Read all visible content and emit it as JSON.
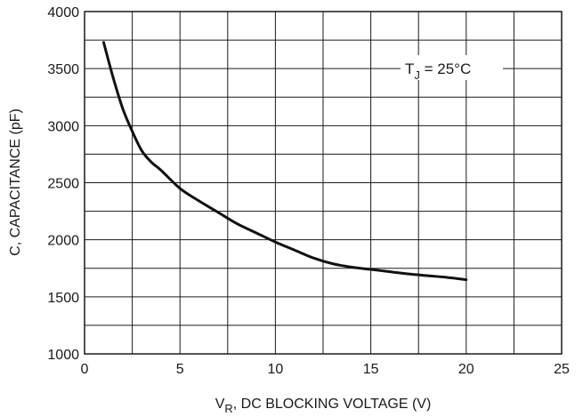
{
  "chart_data": {
    "type": "line",
    "xlabel_main": "V",
    "xlabel_sub": "R",
    "xlabel_rest": ", DC BLOCKING VOLTAGE (V)",
    "ylabel": "C, CAPACITANCE (pF)",
    "xlim": [
      0,
      25
    ],
    "ylim": [
      1000,
      4000
    ],
    "x_ticks": [
      0,
      5,
      10,
      15,
      20,
      25
    ],
    "y_ticks": [
      1000,
      1500,
      2000,
      2500,
      3000,
      3500,
      4000
    ],
    "x_minor_grid_step": 2.5,
    "y_minor_grid_step": 250,
    "grid": true,
    "annotation": {
      "main": "T",
      "sub": "J",
      "rest": " = 25°C"
    },
    "series": [
      {
        "x": [
          1,
          1.5,
          2,
          2.5,
          3,
          3.5,
          4,
          5,
          6,
          7,
          8,
          9,
          10,
          11,
          12,
          13,
          14,
          15,
          16,
          17,
          18,
          19,
          20
        ],
        "values": [
          3730,
          3420,
          3150,
          2950,
          2780,
          2680,
          2610,
          2450,
          2340,
          2240,
          2140,
          2060,
          1980,
          1910,
          1840,
          1790,
          1760,
          1740,
          1720,
          1700,
          1685,
          1670,
          1650
        ]
      }
    ]
  }
}
